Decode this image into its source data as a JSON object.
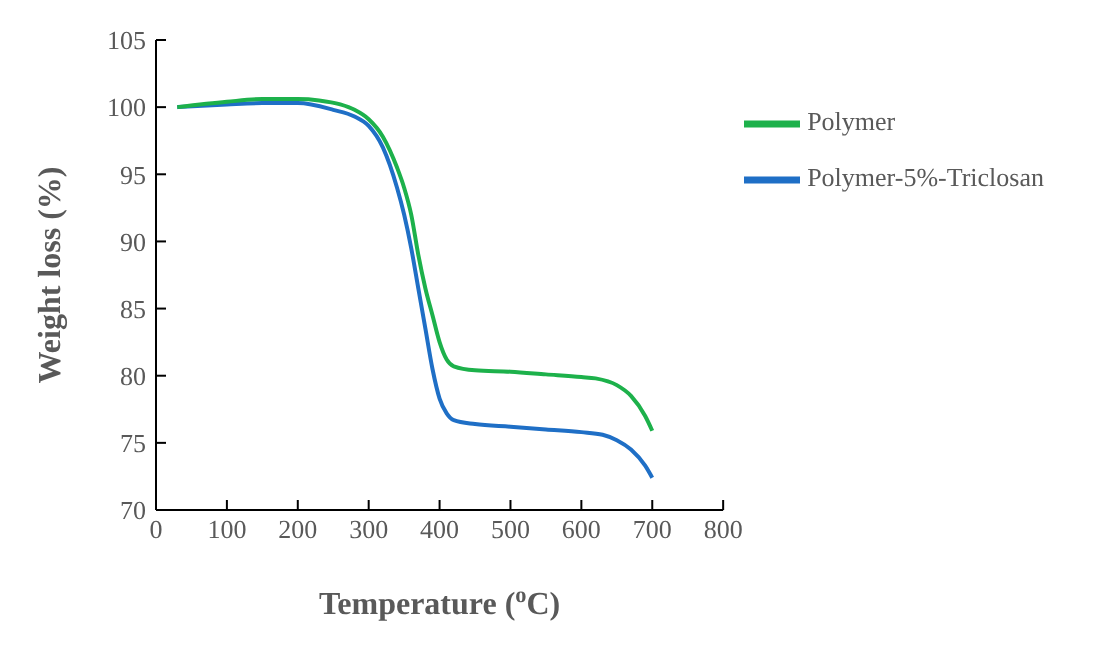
{
  "chart_data": {
    "type": "line",
    "xlabel": "Temperature ($^{o}$C)",
    "ylabel": "Weight loss (%)",
    "xlim": [
      0,
      800
    ],
    "xticks": [
      0,
      100,
      200,
      300,
      400,
      500,
      600,
      700,
      800
    ],
    "ylim": [
      70,
      105
    ],
    "yticks": [
      70,
      75,
      80,
      85,
      90,
      95,
      100,
      105
    ],
    "grid": false,
    "legend": "top right",
    "marker": "none",
    "line_style": "solid",
    "series": [
      {
        "name": "Polymer-5%-Triclosan",
        "color": "#1f6fc6",
        "x": [
          30,
          100,
          150,
          200,
          250,
          280,
          300,
          320,
          340,
          350,
          360,
          370,
          380,
          390,
          400,
          410,
          420,
          450,
          500,
          550,
          600,
          630,
          650,
          670,
          690,
          700
        ],
        "values": [
          100,
          100.2,
          100.3,
          100.3,
          99.8,
          99.3,
          98.6,
          97,
          94,
          92,
          89.5,
          86.5,
          83.5,
          80.5,
          78.3,
          77.2,
          76.7,
          76.4,
          76.2,
          76,
          75.8,
          75.6,
          75.2,
          74.5,
          73.3,
          72.4
        ]
      },
      {
        "name": "Polymer",
        "color": "#1db14b",
        "x": [
          30,
          100,
          150,
          200,
          230,
          260,
          280,
          300,
          320,
          340,
          350,
          360,
          370,
          380,
          390,
          400,
          410,
          420,
          450,
          500,
          550,
          600,
          620,
          650,
          670,
          690,
          700
        ],
        "values": [
          100,
          100.4,
          100.6,
          100.6,
          100.5,
          100.2,
          99.8,
          99.1,
          97.8,
          95.5,
          94,
          92,
          89,
          86.5,
          84.5,
          82.5,
          81.2,
          80.7,
          80.4,
          80.3,
          80.1,
          79.9,
          79.8,
          79.3,
          78.5,
          77,
          75.9
        ]
      }
    ]
  }
}
